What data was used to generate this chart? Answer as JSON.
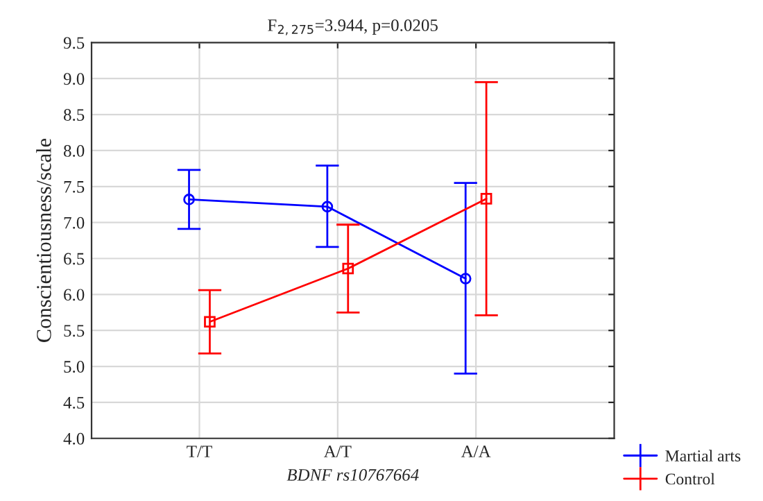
{
  "chart_data": {
    "type": "line",
    "title": "F$_{2,275}$=3.944, p=0.0205",
    "xlabel": "BDNF rs10767664",
    "ylabel": "Conscientiousness/scale",
    "categories": [
      "T/T",
      "A/T",
      "A/A"
    ],
    "series": [
      {
        "name": "Martial arts",
        "color": "#0000ff",
        "marker": "circle",
        "values": [
          7.32,
          7.22,
          6.22
        ],
        "errors": [
          [
            6.91,
            7.73
          ],
          [
            6.66,
            7.79
          ],
          [
            4.9,
            7.55
          ]
        ]
      },
      {
        "name": "Control",
        "color": "#ff0000",
        "marker": "square",
        "values": [
          5.62,
          6.36,
          7.33
        ],
        "errors": [
          [
            5.18,
            6.06
          ],
          [
            5.75,
            6.97
          ],
          [
            5.71,
            8.95
          ]
        ]
      }
    ],
    "ylim": [
      4.0,
      9.5
    ],
    "yticks": [
      {
        "value": 4.0,
        "label": "4.0"
      },
      {
        "value": 4.5,
        "label": "4.5"
      },
      {
        "value": 5.0,
        "label": "5.0"
      },
      {
        "value": 5.5,
        "label": "5.5"
      },
      {
        "value": 6.0,
        "label": "6.0"
      },
      {
        "value": 6.5,
        "label": "6.5"
      },
      {
        "value": 7.0,
        "label": "7.0"
      },
      {
        "value": 7.5,
        "label": "7.5"
      },
      {
        "value": 8.0,
        "label": "8.0"
      },
      {
        "value": 8.5,
        "label": "8.5"
      },
      {
        "value": 9.0,
        "label": "9.0"
      },
      {
        "value": 9.5,
        "label": "9.5"
      }
    ],
    "grid": true,
    "legend": "bottom right",
    "line_style": "solid"
  }
}
